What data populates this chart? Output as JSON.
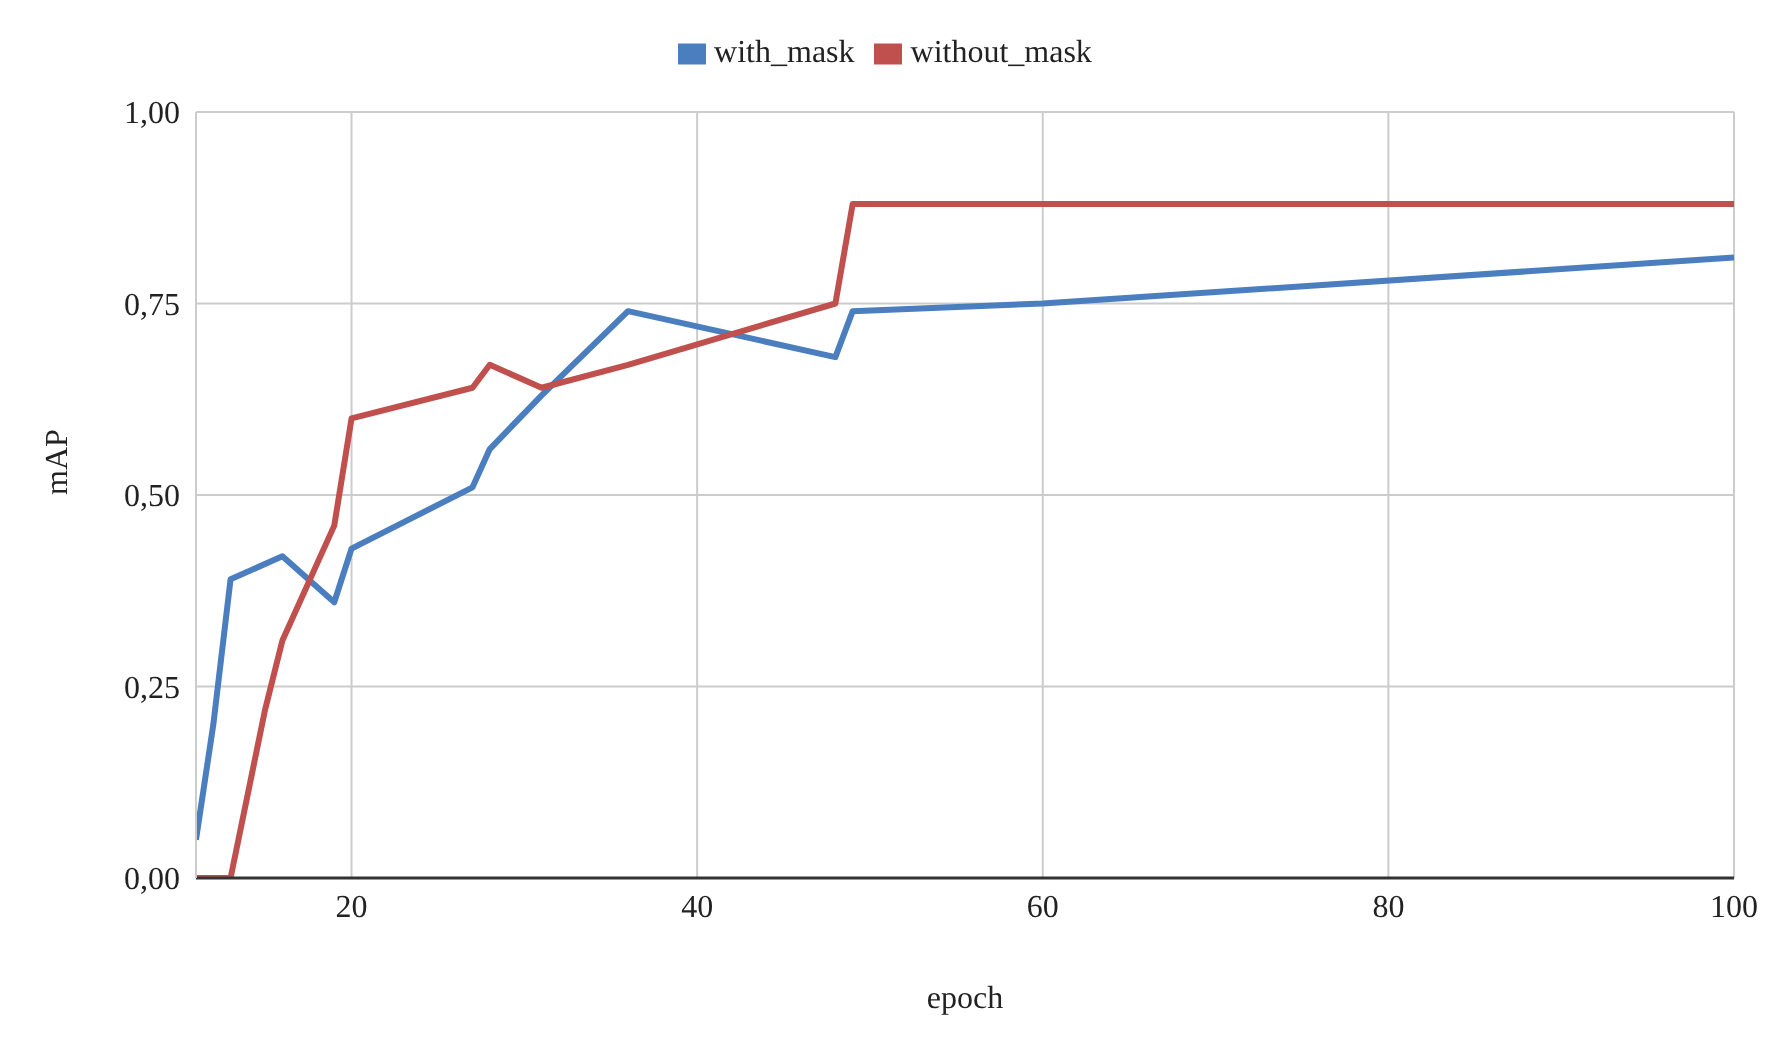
{
  "chart_data": {
    "type": "line",
    "xlabel": "epoch",
    "ylabel": "mAP",
    "xlim": [
      11,
      100
    ],
    "xticks": [
      20,
      40,
      60,
      80,
      100
    ],
    "ylim": [
      0,
      1
    ],
    "yticks": [
      {
        "value": 0,
        "label": "0,00"
      },
      {
        "value": 0.25,
        "label": "0,25"
      },
      {
        "value": 0.5,
        "label": "0,50"
      },
      {
        "value": 0.75,
        "label": "0,75"
      },
      {
        "value": 1,
        "label": "1,00"
      }
    ],
    "grid": true,
    "legend": "top",
    "marker": "none",
    "line_style": "solid",
    "series": [
      {
        "name": "with_mask",
        "color": "#4a7ebf",
        "x": [
          11,
          12,
          13,
          16,
          19,
          20,
          27,
          28,
          31,
          36,
          48,
          49,
          60,
          100
        ],
        "values": [
          0.05,
          0.2,
          0.39,
          0.42,
          0.36,
          0.43,
          0.51,
          0.56,
          0.63,
          0.74,
          0.68,
          0.74,
          0.75,
          0.81
        ]
      },
      {
        "name": "without_mask",
        "color": "#c0504d",
        "x": [
          11,
          13,
          15,
          16,
          19,
          20,
          27,
          28,
          31,
          36,
          48,
          49,
          100
        ],
        "values": [
          0,
          0,
          0.22,
          0.31,
          0.46,
          0.6,
          0.64,
          0.67,
          0.64,
          0.67,
          0.75,
          0.88,
          0.88
        ]
      }
    ]
  }
}
